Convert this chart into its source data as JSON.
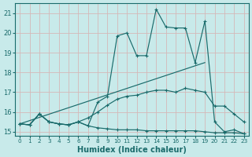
{
  "xlabel": "Humidex (Indice chaleur)",
  "bg_color": "#c8eaea",
  "grid_color": "#d4b8b8",
  "line_color": "#1a6b6b",
  "xlim": [
    -0.5,
    23.5
  ],
  "ylim": [
    14.8,
    21.5
  ],
  "yticks": [
    15,
    16,
    17,
    18,
    19,
    20,
    21
  ],
  "xticks": [
    0,
    1,
    2,
    3,
    4,
    5,
    6,
    7,
    8,
    9,
    10,
    11,
    12,
    13,
    14,
    15,
    16,
    17,
    18,
    19,
    20,
    21,
    22,
    23
  ],
  "line1_x": [
    0,
    1,
    2,
    3,
    4,
    5,
    6,
    7,
    8,
    9,
    10,
    11,
    12,
    13,
    14,
    15,
    16,
    17,
    18,
    19,
    20,
    21,
    22,
    23
  ],
  "line1_y": [
    15.4,
    15.35,
    15.9,
    15.5,
    15.4,
    15.35,
    15.5,
    15.3,
    16.5,
    16.8,
    19.85,
    20.0,
    18.85,
    18.85,
    21.2,
    20.3,
    20.25,
    20.25,
    18.5,
    20.6,
    15.5,
    15.0,
    15.1,
    14.9
  ],
  "line2_x": [
    0,
    1,
    2,
    3,
    4,
    5,
    6,
    7,
    8,
    9,
    10,
    11,
    12,
    13,
    14,
    15,
    16,
    17,
    18,
    19,
    20,
    21,
    22,
    23
  ],
  "line2_y": [
    15.4,
    15.35,
    15.9,
    15.5,
    15.4,
    15.35,
    15.5,
    15.3,
    15.2,
    15.15,
    15.1,
    15.1,
    15.1,
    15.05,
    15.05,
    15.05,
    15.05,
    15.05,
    15.05,
    15.0,
    14.95,
    14.95,
    14.95,
    14.9
  ],
  "line3_x": [
    0,
    1,
    2,
    3,
    4,
    5,
    6,
    7,
    8,
    9,
    10,
    11,
    12,
    13,
    14,
    15,
    16,
    17,
    18,
    19,
    20,
    21,
    22,
    23
  ],
  "line3_y": [
    15.4,
    15.35,
    15.9,
    15.5,
    15.4,
    15.35,
    15.5,
    15.7,
    16.0,
    16.35,
    16.65,
    16.8,
    16.85,
    17.0,
    17.1,
    17.1,
    17.0,
    17.2,
    17.1,
    17.0,
    16.3,
    16.3,
    15.9,
    15.5
  ],
  "line4_x": [
    0,
    19
  ],
  "line4_y": [
    15.4,
    18.5
  ]
}
